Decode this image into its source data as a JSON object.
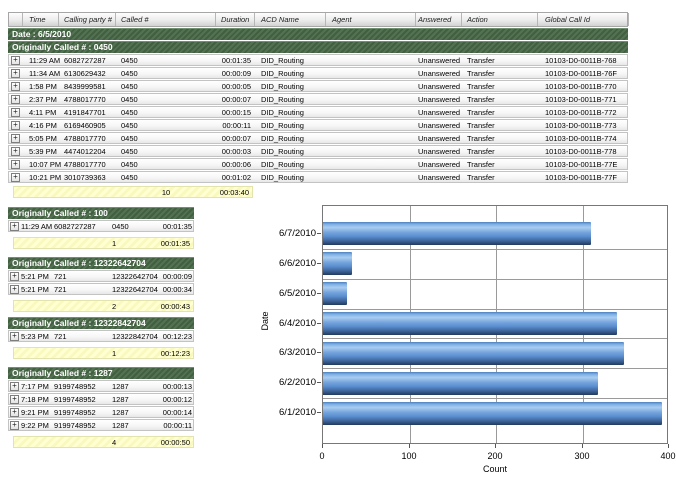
{
  "table": {
    "columns": [
      "Time",
      "Calling party #",
      "Called #",
      "Duration",
      "ACD Name",
      "Agent",
      "Answered",
      "Action",
      "Global Call Id"
    ],
    "date_header": "Date : 6/5/2010",
    "groups": [
      {
        "label": "Originally Called # : 0450",
        "rows": [
          {
            "time": "11:29 AM",
            "calling_party": "6082727287",
            "called": "0450",
            "duration": "00:01:35",
            "acd_name": "DID_Routing",
            "agent": "",
            "answered": "Unanswered",
            "action": "Transfer",
            "global_call_id": "10103-D0-0011B-768"
          },
          {
            "time": "11:34 AM",
            "calling_party": "6130629432",
            "called": "0450",
            "duration": "00:00:09",
            "acd_name": "DID_Routing",
            "agent": "",
            "answered": "Unanswered",
            "action": "Transfer",
            "global_call_id": "10103-D0-0011B-76F"
          },
          {
            "time": "1:58 PM",
            "calling_party": "8439999581",
            "called": "0450",
            "duration": "00:00:05",
            "acd_name": "DID_Routing",
            "agent": "",
            "answered": "Unanswered",
            "action": "Transfer",
            "global_call_id": "10103-D0-0011B-770"
          },
          {
            "time": "2:37 PM",
            "calling_party": "4788017770",
            "called": "0450",
            "duration": "00:00:07",
            "acd_name": "DID_Routing",
            "agent": "",
            "answered": "Unanswered",
            "action": "Transfer",
            "global_call_id": "10103-D0-0011B-771"
          },
          {
            "time": "4:11 PM",
            "calling_party": "4191847701",
            "called": "0450",
            "duration": "00:00:15",
            "acd_name": "DID_Routing",
            "agent": "",
            "answered": "Unanswered",
            "action": "Transfer",
            "global_call_id": "10103-D0-0011B-772"
          },
          {
            "time": "4:16 PM",
            "calling_party": "6169460905",
            "called": "0450",
            "duration": "00:00:11",
            "acd_name": "DID_Routing",
            "agent": "",
            "answered": "Unanswered",
            "action": "Transfer",
            "global_call_id": "10103-D0-0011B-773"
          },
          {
            "time": "5:05 PM",
            "calling_party": "4788017770",
            "called": "0450",
            "duration": "00:00:07",
            "acd_name": "DID_Routing",
            "agent": "",
            "answered": "Unanswered",
            "action": "Transfer",
            "global_call_id": "10103-D0-0011B-774"
          },
          {
            "time": "5:39 PM",
            "calling_party": "4474012204",
            "called": "0450",
            "duration": "00:00:03",
            "acd_name": "DID_Routing",
            "agent": "",
            "answered": "Unanswered",
            "action": "Transfer",
            "global_call_id": "10103-D0-0011B-778"
          },
          {
            "time": "10:07 PM",
            "calling_party": "4788017770",
            "called": "0450",
            "duration": "00:00:06",
            "acd_name": "DID_Routing",
            "agent": "",
            "answered": "Unanswered",
            "action": "Transfer",
            "global_call_id": "10103-D0-0011B-77E"
          },
          {
            "time": "10:21 PM",
            "calling_party": "3010739363",
            "called": "0450",
            "duration": "00:01:02",
            "acd_name": "DID_Routing",
            "agent": "",
            "answered": "Unanswered",
            "action": "Transfer",
            "global_call_id": "10103-D0-0011B-77F"
          }
        ],
        "summary": {
          "count": "10",
          "total_duration": "00:03:40"
        }
      },
      {
        "label": "Originally Called # : 100",
        "rows": [
          {
            "time": "11:29 AM",
            "calling_party": "6082727287",
            "called": "0450",
            "duration": "00:01:35"
          }
        ],
        "summary": {
          "count": "1",
          "total_duration": "00:01:35"
        }
      },
      {
        "label": "Originally Called # : 12322642704",
        "rows": [
          {
            "time": "5:21 PM",
            "calling_party": "721",
            "called": "12322642704",
            "duration": "00:00:09"
          },
          {
            "time": "5:21 PM",
            "calling_party": "721",
            "called": "12322642704",
            "duration": "00:00:34"
          }
        ],
        "summary": {
          "count": "2",
          "total_duration": "00:00:43"
        }
      },
      {
        "label": "Originally Called # : 12322842704",
        "rows": [
          {
            "time": "5:23 PM",
            "calling_party": "721",
            "called": "12322842704",
            "duration": "00:12:23"
          }
        ],
        "summary": {
          "count": "1",
          "total_duration": "00:12:23"
        }
      },
      {
        "label": "Originally Called # : 1287",
        "rows": [
          {
            "time": "7:17 PM",
            "calling_party": "9199748952",
            "called": "1287",
            "duration": "00:00:13"
          },
          {
            "time": "7:18 PM",
            "calling_party": "9199748952",
            "called": "1287",
            "duration": "00:00:12"
          },
          {
            "time": "9:21 PM",
            "calling_party": "9199748952",
            "called": "1287",
            "duration": "00:00:14"
          },
          {
            "time": "9:22 PM",
            "calling_party": "9199748952",
            "called": "1287",
            "duration": "00:00:11"
          }
        ],
        "summary": {
          "count": "4",
          "total_duration": "00:00:50"
        }
      }
    ]
  },
  "icons": {
    "expand": "+"
  },
  "colors": {
    "group_header_green": "#4d6b4d",
    "summary_yellow": "#ffffcc",
    "bar_blue": "#5b8fd0",
    "gridline_gray": "#9a9a9a"
  },
  "chart_data": {
    "type": "bar",
    "orientation": "horizontal",
    "category_order": "top-to-bottom",
    "categories": [
      "6/7/2010",
      "6/6/2010",
      "6/5/2010",
      "6/4/2010",
      "6/3/2010",
      "6/2/2010",
      "6/1/2010"
    ],
    "values": [
      310,
      33,
      28,
      340,
      348,
      318,
      392
    ],
    "title": "",
    "xlabel": "Count",
    "ylabel": "Date",
    "xlim": [
      0,
      400
    ],
    "xticks": [
      0,
      100,
      200,
      300,
      400
    ],
    "grid": "on",
    "legend": "none",
    "bar_color": "#5b8fd0"
  }
}
